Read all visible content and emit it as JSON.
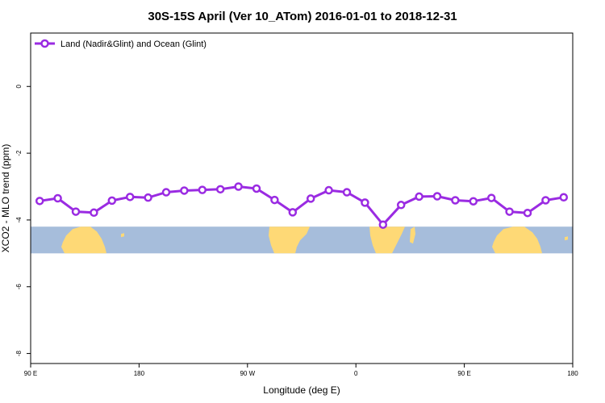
{
  "chart_data": {
    "type": "line",
    "title": "30S-15S April (Ver 10_ATom)   2016-01-01 to 2018-12-31",
    "xlabel": "Longitude (deg E)",
    "ylabel": "XCO2 - MLO trend (ppm)",
    "x_ticks": [
      {
        "x": 90,
        "label": "90 E"
      },
      {
        "x": 180,
        "label": "180"
      },
      {
        "x": 270,
        "label": "90 W"
      },
      {
        "x": 360,
        "label": "0"
      },
      {
        "x": 450,
        "label": "90 E"
      },
      {
        "x": 540,
        "label": "180"
      }
    ],
    "xlim": [
      90,
      540
    ],
    "ylim": [
      -8.3,
      1.6
    ],
    "y_ticks": [
      0,
      -2,
      -4,
      -6,
      -8
    ],
    "grid": false,
    "legend_position": "top-left",
    "series": [
      {
        "name": "Land (Nadir&Glint) and Ocean (Glint)",
        "color": "#9a2be2",
        "x": [
          97.5,
          112.5,
          127.5,
          142.5,
          157.5,
          172.5,
          187.5,
          202.5,
          217.5,
          232.5,
          247.5,
          262.5,
          277.5,
          292.5,
          307.5,
          322.5,
          337.5,
          352.5,
          367.5,
          382.5,
          397.5,
          412.5,
          427.5,
          442.5,
          457.5,
          472.5,
          487.5,
          502.5,
          517.5,
          532.5
        ],
        "y": [
          -3.43,
          -3.35,
          -3.75,
          -3.78,
          -3.42,
          -3.31,
          -3.33,
          -3.17,
          -3.12,
          -3.1,
          -3.08,
          -3.0,
          -3.06,
          -3.4,
          -3.77,
          -3.36,
          -3.11,
          -3.17,
          -3.48,
          -4.14,
          -3.55,
          -3.3,
          -3.29,
          -3.41,
          -3.44,
          -3.34,
          -3.75,
          -3.79,
          -3.41,
          -3.32
        ]
      }
    ],
    "map_band": {
      "ocean_color": "#a6bddb",
      "land_color": "#fed976",
      "y_range": [
        -4.2,
        -5.0
      ]
    }
  }
}
